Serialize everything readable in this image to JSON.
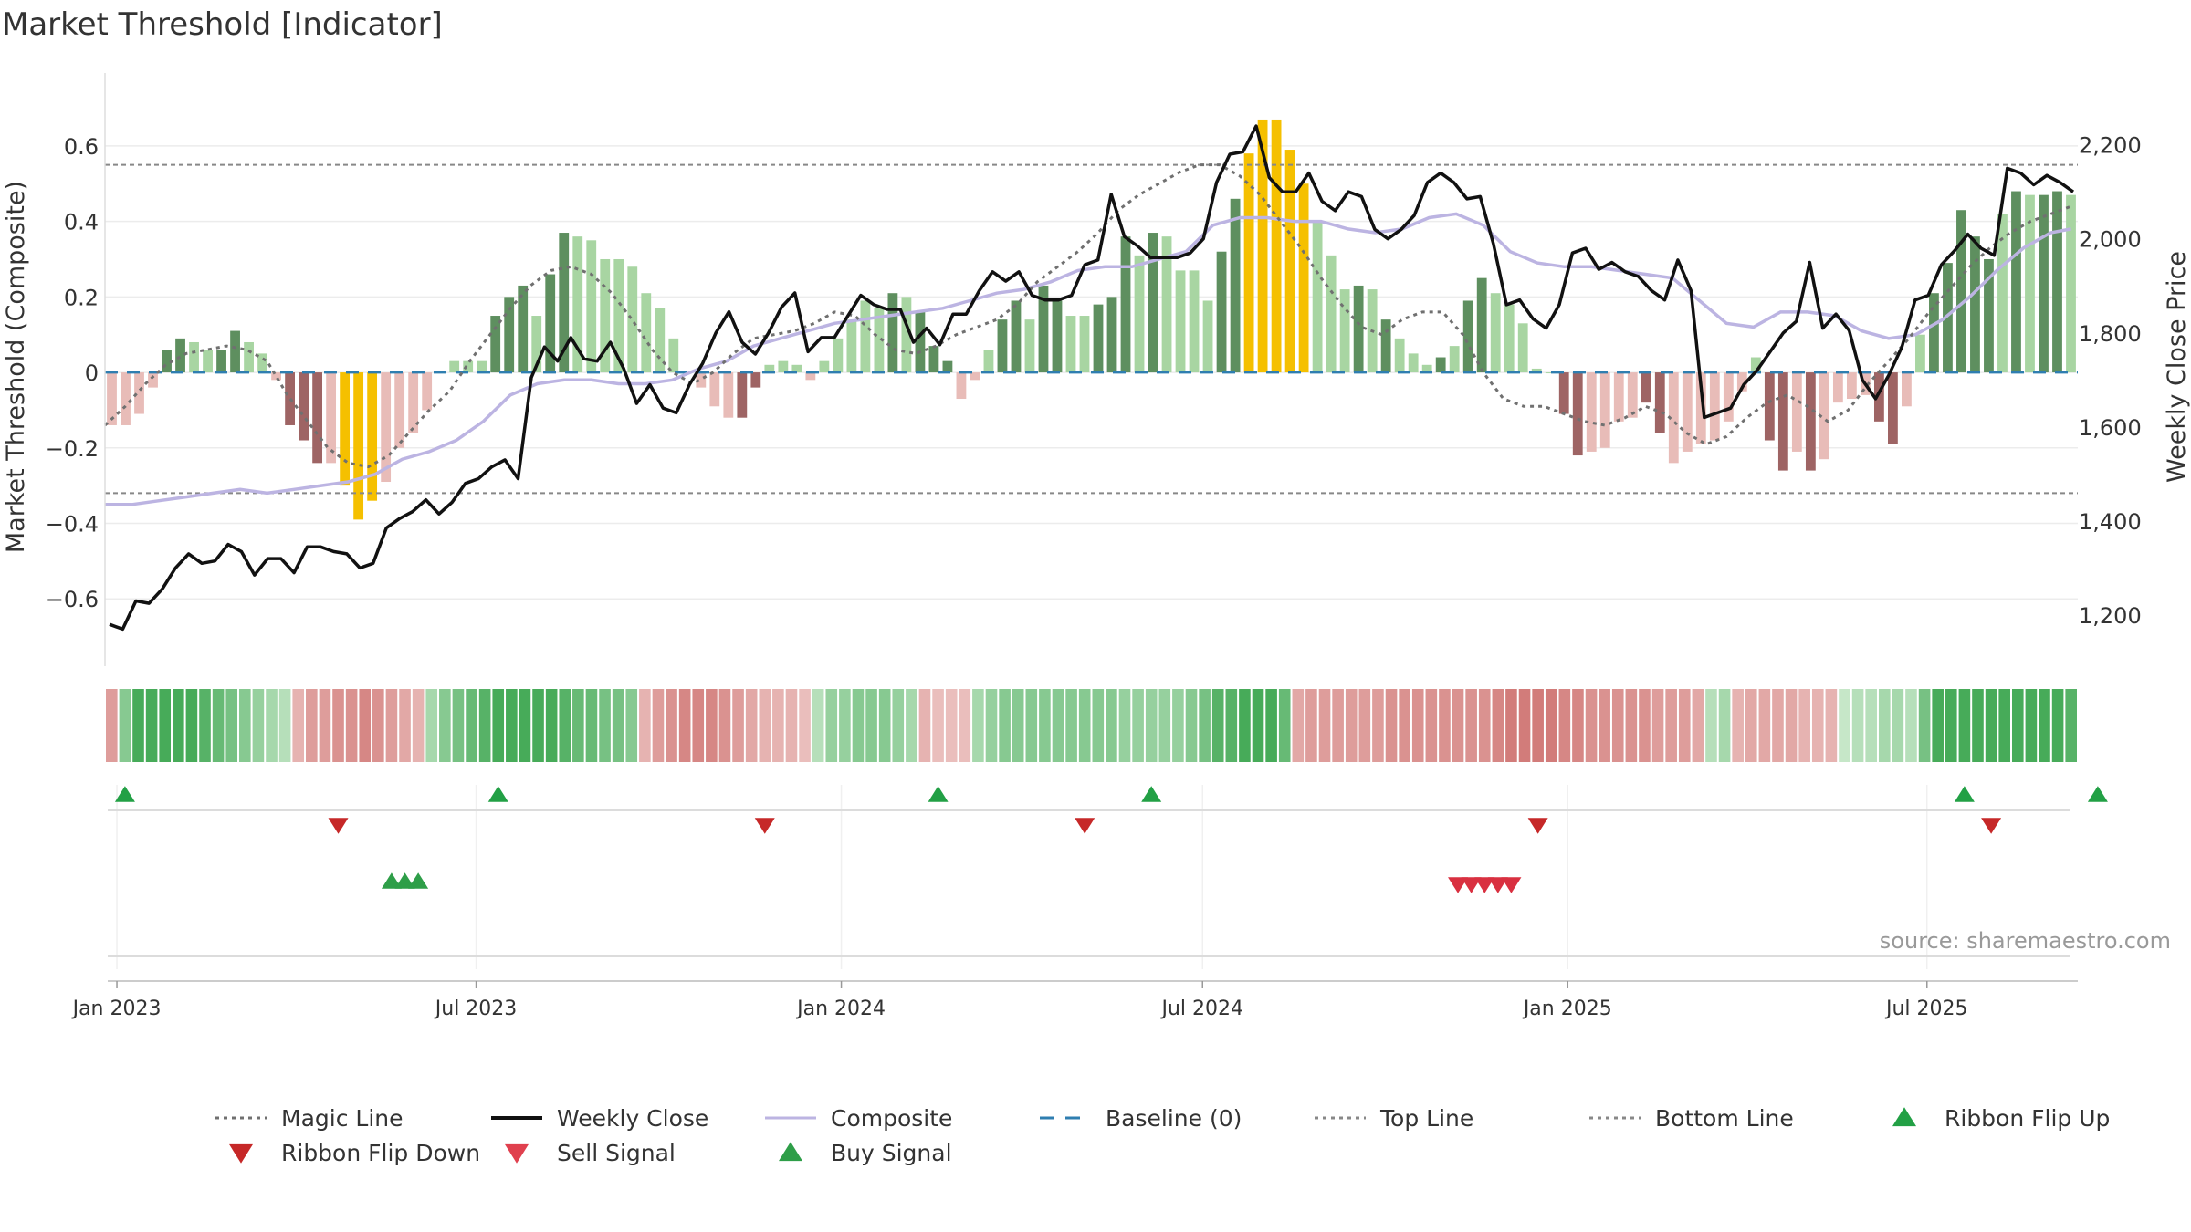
{
  "title": "Market Threshold [Indicator]",
  "source": "source: sharemaestro.com",
  "colors": {
    "strong_pos": "#5e8f5f",
    "weak_pos": "#a8d5a2",
    "strong_neg": "#9e6464",
    "weak_neg": "#e8bcb8",
    "extreme": "#f5c000",
    "price": "#111111",
    "composite": "#bcb4e2",
    "magic": "#707070",
    "baseline": "#2f7eb0",
    "buy": "#22a045",
    "sell": "#d93040"
  },
  "chart_data": {
    "type": "bar",
    "title": "Market Threshold [Indicator]",
    "ylabel_left": "Market Threshold (Composite)",
    "ylabel_right": "Weekly Close Price",
    "ylim_left": [
      -0.73,
      0.74
    ],
    "ylim_right": [
      1130,
      2310
    ],
    "yticks_left": [
      0.6,
      0.4,
      0.2,
      0,
      -0.2,
      -0.4,
      -0.6
    ],
    "yticks_left_labels": [
      "0.6",
      "0.4",
      "0.2",
      "0",
      "−0.2",
      "−0.4",
      "−0.6"
    ],
    "yticks_right": [
      2200,
      2000,
      1800,
      1600,
      1400,
      1200
    ],
    "yticks_right_labels": [
      "2,200",
      "2,000",
      "1,800",
      "1,600",
      "1,400",
      "1,200"
    ],
    "x_start": "2022-12-26",
    "x_end": "2025-09-15",
    "xticks": [
      "2023-01-01",
      "2023-07-01",
      "2024-01-01",
      "2024-07-01",
      "2025-01-01",
      "2025-07-01"
    ],
    "xtick_labels": [
      "Jan 2023",
      "Jul 2023",
      "Jan 2024",
      "Jul 2024",
      "Jan 2025",
      "Jul 2025"
    ],
    "top_line": 0.55,
    "bottom_line": -0.32,
    "baseline": 0,
    "composite_values": [
      -0.14,
      -0.14,
      -0.11,
      -0.04,
      0.06,
      0.09,
      0.08,
      0.06,
      0.06,
      0.11,
      0.08,
      0.05,
      -0.02,
      -0.14,
      -0.18,
      -0.24,
      -0.24,
      -0.3,
      -0.39,
      -0.34,
      -0.29,
      -0.2,
      -0.16,
      -0.1,
      0.0,
      0.03,
      0.03,
      0.03,
      0.15,
      0.2,
      0.23,
      0.15,
      0.26,
      0.37,
      0.36,
      0.35,
      0.3,
      0.3,
      0.28,
      0.21,
      0.17,
      0.09,
      0.0,
      -0.04,
      -0.09,
      -0.12,
      -0.12,
      -0.04,
      0.02,
      0.03,
      0.02,
      -0.02,
      0.03,
      0.09,
      0.14,
      0.19,
      0.17,
      0.21,
      0.2,
      0.16,
      0.07,
      0.03,
      -0.07,
      -0.02,
      0.06,
      0.14,
      0.19,
      0.14,
      0.23,
      0.19,
      0.15,
      0.15,
      0.18,
      0.2,
      0.36,
      0.31,
      0.37,
      0.36,
      0.27,
      0.27,
      0.19,
      0.32,
      0.46,
      0.58,
      0.67,
      0.67,
      0.59,
      0.5,
      0.4,
      0.31,
      0.22,
      0.23,
      0.22,
      0.14,
      0.09,
      0.05,
      0.02,
      0.04,
      0.07,
      0.19,
      0.25,
      0.21,
      0.18,
      0.13,
      0.01,
      0.0,
      -0.11,
      -0.22,
      -0.21,
      -0.2,
      -0.13,
      -0.12,
      -0.08,
      -0.16,
      -0.24,
      -0.21,
      -0.19,
      -0.18,
      -0.13,
      -0.05,
      0.04,
      -0.18,
      -0.26,
      -0.21,
      -0.26,
      -0.23,
      -0.08,
      -0.07,
      -0.06,
      -0.13,
      -0.19,
      -0.09,
      0.1,
      0.21,
      0.29,
      0.43,
      0.36,
      0.3,
      0.42,
      0.48,
      0.47,
      0.47,
      0.48,
      0.47
    ],
    "bar_strength": [
      1,
      0,
      1,
      1,
      2,
      2,
      1,
      1,
      2,
      2,
      1,
      1,
      1,
      2,
      2,
      2,
      1,
      3,
      3,
      3,
      1,
      1,
      1,
      1,
      1,
      1,
      1,
      1,
      2,
      2,
      2,
      1,
      2,
      2,
      1,
      1,
      1,
      1,
      1,
      1,
      1,
      1,
      1,
      1,
      1,
      1,
      2,
      2,
      1,
      1,
      1,
      1,
      1,
      1,
      1,
      1,
      1,
      2,
      1,
      2,
      2,
      2,
      1,
      1,
      1,
      2,
      2,
      1,
      2,
      2,
      1,
      1,
      2,
      2,
      2,
      1,
      2,
      1,
      1,
      1,
      1,
      2,
      2,
      3,
      3,
      3,
      3,
      3,
      1,
      1,
      1,
      2,
      1,
      2,
      1,
      1,
      1,
      2,
      1,
      2,
      2,
      1,
      1,
      1,
      1,
      1,
      2,
      2,
      1,
      1,
      1,
      1,
      2,
      2,
      1,
      1,
      1,
      1,
      1,
      1,
      1,
      2,
      2,
      1,
      2,
      1,
      1,
      1,
      1,
      2,
      2,
      1,
      1,
      2,
      2,
      2,
      2,
      2,
      1,
      2,
      1,
      2,
      2,
      1
    ],
    "magic_line": [
      [
        0,
        -0.14
      ],
      [
        3,
        -0.09
      ],
      [
        6,
        -0.03
      ],
      [
        9,
        0.02
      ],
      [
        12,
        0.05
      ],
      [
        15,
        0.06
      ],
      [
        18,
        0.07
      ],
      [
        21,
        0.06
      ],
      [
        24,
        0.03
      ],
      [
        27,
        -0.06
      ],
      [
        30,
        -0.13
      ],
      [
        33,
        -0.2
      ],
      [
        36,
        -0.24
      ],
      [
        39,
        -0.25
      ],
      [
        42,
        -0.22
      ],
      [
        45,
        -0.16
      ],
      [
        48,
        -0.1
      ],
      [
        51,
        -0.05
      ],
      [
        54,
        0.03
      ],
      [
        57,
        0.1
      ],
      [
        60,
        0.17
      ],
      [
        63,
        0.23
      ],
      [
        66,
        0.27
      ],
      [
        69,
        0.28
      ],
      [
        72,
        0.26
      ],
      [
        75,
        0.21
      ],
      [
        78,
        0.14
      ],
      [
        81,
        0.06
      ],
      [
        84,
        0.0
      ],
      [
        87,
        -0.03
      ],
      [
        90,
        0.0
      ],
      [
        93,
        0.05
      ],
      [
        96,
        0.09
      ],
      [
        99,
        0.1
      ],
      [
        102,
        0.11
      ],
      [
        105,
        0.13
      ],
      [
        108,
        0.16
      ],
      [
        111,
        0.15
      ],
      [
        114,
        0.1
      ],
      [
        117,
        0.06
      ],
      [
        120,
        0.05
      ],
      [
        123,
        0.07
      ],
      [
        126,
        0.1
      ],
      [
        129,
        0.12
      ],
      [
        132,
        0.14
      ],
      [
        135,
        0.18
      ],
      [
        138,
        0.24
      ],
      [
        141,
        0.28
      ],
      [
        144,
        0.32
      ],
      [
        147,
        0.37
      ],
      [
        150,
        0.43
      ],
      [
        153,
        0.47
      ],
      [
        156,
        0.5
      ],
      [
        159,
        0.53
      ],
      [
        162,
        0.55
      ],
      [
        165,
        0.55
      ],
      [
        168,
        0.52
      ],
      [
        171,
        0.47
      ],
      [
        174,
        0.4
      ],
      [
        177,
        0.33
      ],
      [
        180,
        0.25
      ],
      [
        183,
        0.18
      ],
      [
        186,
        0.12
      ],
      [
        189,
        0.1
      ],
      [
        192,
        0.14
      ],
      [
        195,
        0.16
      ],
      [
        198,
        0.16
      ],
      [
        201,
        0.1
      ],
      [
        204,
        0.0
      ],
      [
        207,
        -0.07
      ],
      [
        210,
        -0.09
      ],
      [
        213,
        -0.09
      ],
      [
        216,
        -0.11
      ],
      [
        219,
        -0.13
      ],
      [
        222,
        -0.14
      ],
      [
        225,
        -0.12
      ],
      [
        228,
        -0.09
      ],
      [
        231,
        -0.11
      ],
      [
        234,
        -0.16
      ],
      [
        237,
        -0.19
      ],
      [
        240,
        -0.17
      ],
      [
        243,
        -0.12
      ],
      [
        246,
        -0.08
      ],
      [
        249,
        -0.06
      ],
      [
        252,
        -0.09
      ],
      [
        255,
        -0.13
      ],
      [
        258,
        -0.1
      ],
      [
        261,
        -0.03
      ],
      [
        264,
        0.03
      ],
      [
        267,
        0.09
      ],
      [
        270,
        0.16
      ],
      [
        273,
        0.22
      ],
      [
        276,
        0.28
      ],
      [
        279,
        0.33
      ],
      [
        282,
        0.37
      ],
      [
        285,
        0.4
      ],
      [
        288,
        0.42
      ],
      [
        291,
        0.44
      ]
    ],
    "composite_line": [
      [
        0,
        -0.35
      ],
      [
        4,
        -0.35
      ],
      [
        8,
        -0.34
      ],
      [
        12,
        -0.33
      ],
      [
        16,
        -0.32
      ],
      [
        20,
        -0.31
      ],
      [
        24,
        -0.32
      ],
      [
        28,
        -0.31
      ],
      [
        32,
        -0.3
      ],
      [
        36,
        -0.29
      ],
      [
        40,
        -0.27
      ],
      [
        44,
        -0.23
      ],
      [
        48,
        -0.21
      ],
      [
        52,
        -0.18
      ],
      [
        56,
        -0.13
      ],
      [
        60,
        -0.06
      ],
      [
        64,
        -0.03
      ],
      [
        68,
        -0.02
      ],
      [
        72,
        -0.02
      ],
      [
        76,
        -0.03
      ],
      [
        80,
        -0.03
      ],
      [
        84,
        -0.02
      ],
      [
        88,
        0.01
      ],
      [
        92,
        0.03
      ],
      [
        96,
        0.07
      ],
      [
        100,
        0.09
      ],
      [
        104,
        0.11
      ],
      [
        108,
        0.13
      ],
      [
        112,
        0.14
      ],
      [
        116,
        0.15
      ],
      [
        120,
        0.16
      ],
      [
        124,
        0.17
      ],
      [
        128,
        0.19
      ],
      [
        132,
        0.21
      ],
      [
        136,
        0.22
      ],
      [
        140,
        0.24
      ],
      [
        144,
        0.27
      ],
      [
        148,
        0.28
      ],
      [
        152,
        0.28
      ],
      [
        156,
        0.3
      ],
      [
        160,
        0.32
      ],
      [
        164,
        0.39
      ],
      [
        168,
        0.41
      ],
      [
        172,
        0.41
      ],
      [
        176,
        0.4
      ],
      [
        180,
        0.4
      ],
      [
        184,
        0.38
      ],
      [
        188,
        0.37
      ],
      [
        192,
        0.38
      ],
      [
        196,
        0.41
      ],
      [
        200,
        0.42
      ],
      [
        204,
        0.39
      ],
      [
        208,
        0.32
      ],
      [
        212,
        0.29
      ],
      [
        216,
        0.28
      ],
      [
        220,
        0.28
      ],
      [
        224,
        0.27
      ],
      [
        228,
        0.26
      ],
      [
        232,
        0.25
      ],
      [
        236,
        0.19
      ],
      [
        240,
        0.13
      ],
      [
        244,
        0.12
      ],
      [
        248,
        0.16
      ],
      [
        252,
        0.16
      ],
      [
        256,
        0.15
      ],
      [
        260,
        0.11
      ],
      [
        264,
        0.09
      ],
      [
        268,
        0.1
      ],
      [
        272,
        0.14
      ],
      [
        276,
        0.2
      ],
      [
        280,
        0.27
      ],
      [
        284,
        0.33
      ],
      [
        288,
        0.37
      ],
      [
        291,
        0.38
      ]
    ],
    "weekly_close": [
      1180,
      1170,
      1230,
      1225,
      1255,
      1300,
      1330,
      1310,
      1315,
      1350,
      1335,
      1285,
      1320,
      1320,
      1290,
      1345,
      1345,
      1335,
      1330,
      1300,
      1310,
      1385,
      1405,
      1420,
      1445,
      1415,
      1440,
      1480,
      1490,
      1515,
      1530,
      1490,
      1705,
      1770,
      1740,
      1790,
      1745,
      1740,
      1780,
      1725,
      1650,
      1690,
      1640,
      1630,
      1690,
      1735,
      1800,
      1845,
      1780,
      1755,
      1800,
      1855,
      1885,
      1760,
      1790,
      1790,
      1835,
      1880,
      1860,
      1850,
      1850,
      1780,
      1810,
      1775,
      1840,
      1840,
      1890,
      1930,
      1910,
      1930,
      1880,
      1870,
      1870,
      1880,
      1945,
      1955,
      2095,
      2005,
      1985,
      1960,
      1960,
      1960,
      1970,
      2000,
      2120,
      2180,
      2185,
      2240,
      2130,
      2100,
      2100,
      2140,
      2080,
      2060,
      2100,
      2090,
      2020,
      2000,
      2020,
      2050,
      2120,
      2140,
      2120,
      2085,
      2090,
      1990,
      1860,
      1870,
      1830,
      1810,
      1860,
      1970,
      1980,
      1935,
      1950,
      1930,
      1920,
      1890,
      1870,
      1955,
      1890,
      1620,
      1630,
      1640,
      1690,
      1720,
      1760,
      1800,
      1825,
      1950,
      1810,
      1840,
      1805,
      1700,
      1660,
      1710,
      1770,
      1870,
      1880,
      1945,
      1975,
      2010,
      1980,
      1965,
      2150,
      2140,
      2115,
      2135,
      2120,
      2100
    ]
  },
  "ribbon": {
    "values": [
      -0.5,
      0.5,
      0.9,
      0.9,
      0.9,
      0.9,
      0.9,
      0.8,
      0.7,
      0.6,
      0.5,
      0.4,
      0.3,
      0.2,
      -0.3,
      -0.5,
      -0.5,
      -0.6,
      -0.6,
      -0.7,
      -0.6,
      -0.5,
      -0.4,
      -0.3,
      0.3,
      0.5,
      0.6,
      0.7,
      0.8,
      0.9,
      0.9,
      0.9,
      0.9,
      0.9,
      0.8,
      0.7,
      0.7,
      0.6,
      0.6,
      0.5,
      -0.3,
      -0.5,
      -0.6,
      -0.7,
      -0.7,
      -0.7,
      -0.6,
      -0.5,
      -0.4,
      -0.3,
      -0.3,
      -0.3,
      -0.2,
      0.2,
      0.4,
      0.4,
      0.5,
      0.5,
      0.5,
      0.4,
      0.3,
      -0.3,
      -0.2,
      -0.2,
      -0.2,
      0.3,
      0.4,
      0.5,
      0.5,
      0.5,
      0.5,
      0.5,
      0.5,
      0.5,
      0.5,
      0.5,
      0.4,
      0.4,
      0.4,
      0.4,
      0.4,
      0.5,
      0.6,
      0.8,
      0.8,
      0.9,
      0.9,
      0.9,
      0.7,
      -0.4,
      -0.5,
      -0.5,
      -0.5,
      -0.5,
      -0.5,
      -0.5,
      -0.6,
      -0.6,
      -0.6,
      -0.6,
      -0.6,
      -0.6,
      -0.6,
      -0.6,
      -0.7,
      -0.8,
      -0.8,
      -0.8,
      -0.8,
      -0.7,
      -0.7,
      -0.6,
      -0.6,
      -0.6,
      -0.6,
      -0.6,
      -0.5,
      -0.5,
      -0.5,
      -0.4,
      0.2,
      0.3,
      -0.3,
      -0.4,
      -0.4,
      -0.4,
      -0.4,
      -0.3,
      -0.3,
      -0.3,
      0.1,
      0.2,
      0.2,
      0.3,
      0.3,
      0.2,
      0.6,
      0.9,
      0.9,
      0.9,
      0.9,
      0.9,
      0.9,
      0.9,
      0.9,
      0.9,
      0.9,
      0.8
    ]
  },
  "ribbon_flip_up": [
    1,
    29,
    62,
    78,
    139,
    149
  ],
  "ribbon_flip_down": [
    17,
    49,
    73,
    107,
    141
  ],
  "buy_signal": [
    21,
    22,
    23
  ],
  "sell_signal": [
    101,
    102,
    103,
    104,
    105
  ],
  "legend": [
    {
      "label": "Magic Line",
      "symbol": "dotted",
      "color": "#707070"
    },
    {
      "label": "Weekly Close",
      "symbol": "solid",
      "color": "#111111"
    },
    {
      "label": "Composite",
      "symbol": "solid",
      "color": "#bcb4e2"
    },
    {
      "label": "Baseline (0)",
      "symbol": "dashed",
      "color": "#2f7eb0"
    },
    {
      "label": "Top Line",
      "symbol": "dotted",
      "color": "#888888"
    },
    {
      "label": "Bottom Line",
      "symbol": "dotted",
      "color": "#888888"
    },
    {
      "label": "Ribbon Flip Up",
      "symbol": "triangle-up",
      "color": "#22a045"
    },
    {
      "label": "Ribbon Flip Down",
      "symbol": "triangle-down",
      "color": "#c62828"
    },
    {
      "label": "Sell Signal",
      "symbol": "triangle-down",
      "color": "#e0404e"
    },
    {
      "label": "Buy Signal",
      "symbol": "triangle-up",
      "color": "#2e9e48"
    }
  ]
}
